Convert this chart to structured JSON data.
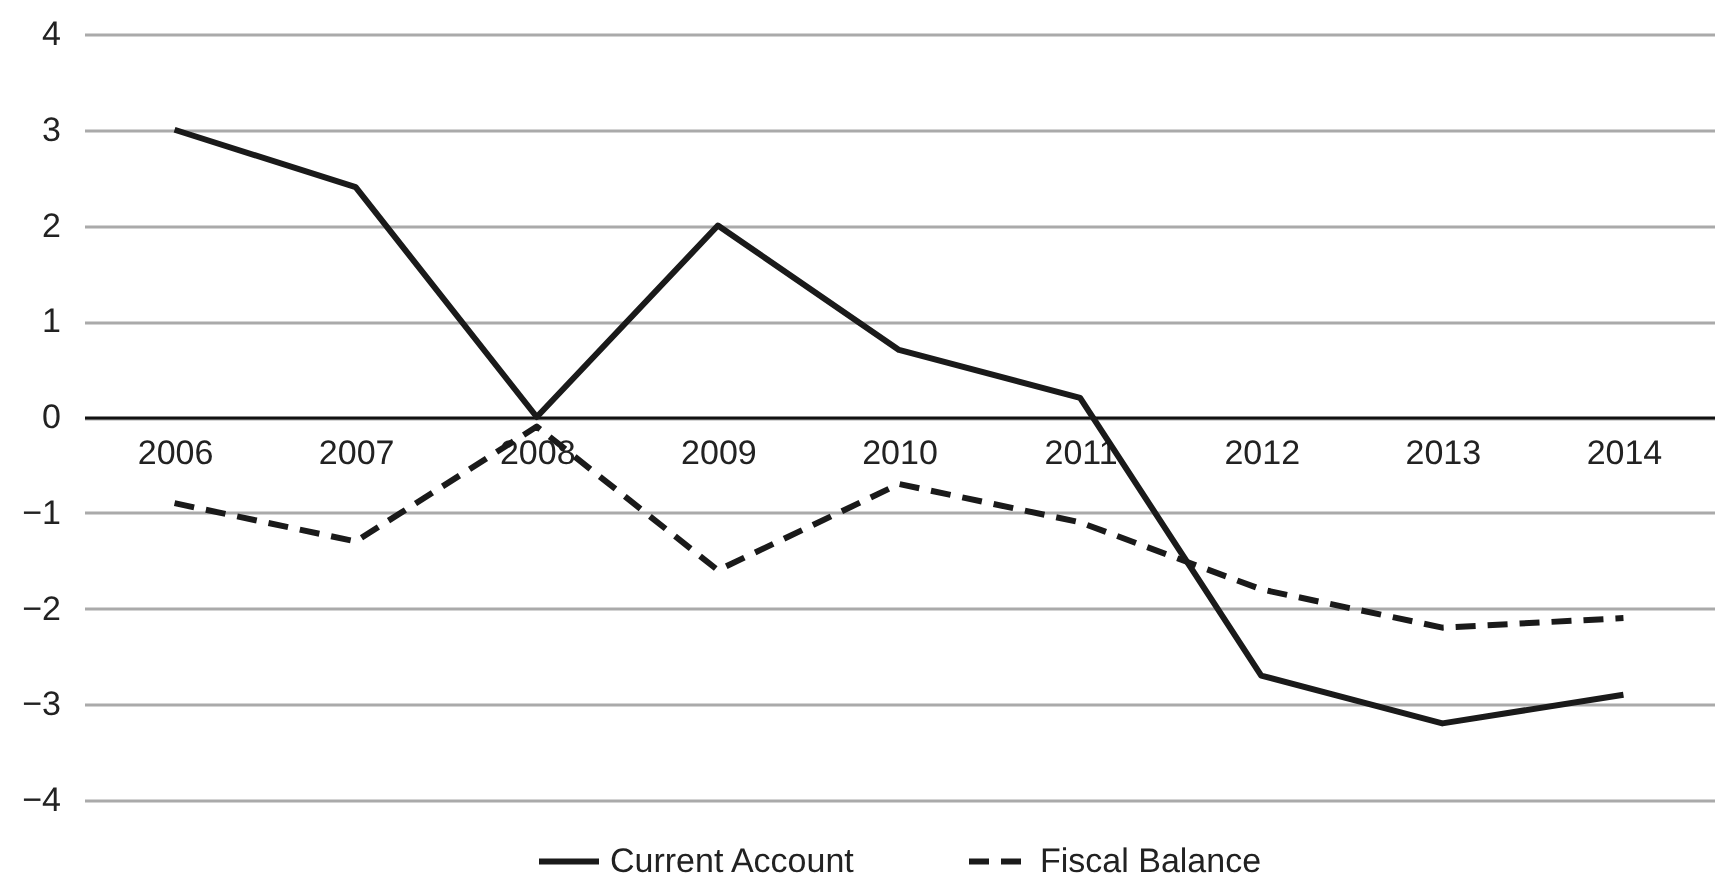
{
  "chart_data": {
    "type": "line",
    "categories": [
      "2006",
      "2007",
      "2008",
      "2009",
      "2010",
      "2011",
      "2012",
      "2013",
      "2014"
    ],
    "series": [
      {
        "name": "Current Account",
        "color": "#1a1a1a",
        "line_style": "solid",
        "values": [
          3,
          2.4,
          0,
          2,
          0.7,
          0.2,
          -2.7,
          -3.2,
          -2.9
        ]
      },
      {
        "name": "Fiscal Balance",
        "color": "#1a1a1a",
        "line_style": "dashed",
        "values": [
          -0.9,
          -1.3,
          -0.1,
          -1.6,
          -0.7,
          -1.1,
          -1.8,
          -2.2,
          -2.1
        ]
      }
    ],
    "ylim": [
      -4,
      4
    ],
    "yticks": [
      {
        "value": -4,
        "label": "−4"
      },
      {
        "value": -3,
        "label": "−3"
      },
      {
        "value": -2,
        "label": "−2"
      },
      {
        "value": -1,
        "label": "−1"
      },
      0,
      1,
      2,
      3,
      4
    ],
    "grid": "y",
    "legend": "bottom"
  }
}
